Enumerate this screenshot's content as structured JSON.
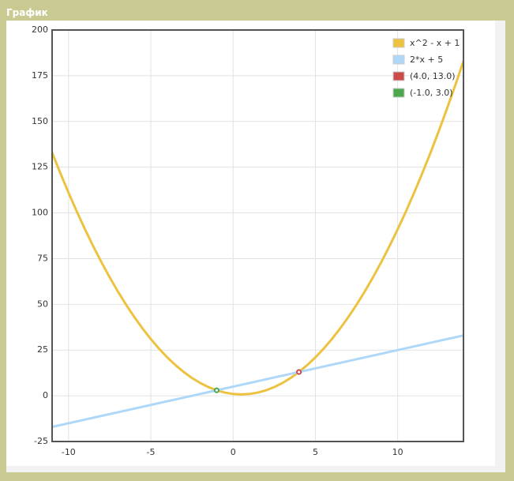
{
  "panel_title": "График",
  "chart_data": {
    "type": "line",
    "xlim": [
      -11,
      14
    ],
    "xticks": [
      -10,
      -5,
      0,
      5,
      10
    ],
    "ylim": [
      -25,
      200
    ],
    "yticks": [
      -25,
      0,
      25,
      50,
      75,
      100,
      125,
      150,
      175,
      200
    ],
    "grid": true,
    "legend": "top-right",
    "series": [
      {
        "name": "x^2 - x + 1",
        "color": "#edc240",
        "kind": "line",
        "x": [
          -11,
          -10.5,
          -10,
          -9.5,
          -9,
          -8.5,
          -8,
          -7.5,
          -7,
          -6.5,
          -6,
          -5.5,
          -5,
          -4.5,
          -4,
          -3.5,
          -3,
          -2.5,
          -2,
          -1.5,
          -1,
          -0.5,
          0,
          0.5,
          1,
          1.5,
          2,
          2.5,
          3,
          3.5,
          4,
          4.5,
          5,
          5.5,
          6,
          6.5,
          7,
          7.5,
          8,
          8.5,
          9,
          9.5,
          10,
          10.5,
          11,
          11.5,
          12,
          12.5,
          13,
          13.5,
          14
        ],
        "values": [
          133,
          121.75,
          111,
          100.75,
          91,
          81.75,
          73,
          64.75,
          57,
          49.75,
          43,
          36.75,
          31,
          25.75,
          21,
          16.75,
          13,
          9.75,
          7,
          4.75,
          3,
          1.75,
          1,
          0.75,
          1,
          1.75,
          3,
          4.75,
          7,
          9.75,
          13,
          16.75,
          21,
          25.75,
          31,
          36.75,
          43,
          49.75,
          57,
          64.75,
          73,
          81.75,
          91,
          100.75,
          111,
          121.75,
          133,
          144.75,
          157,
          169.75,
          183
        ]
      },
      {
        "name": "2*x + 5",
        "color": "#afd8f8",
        "kind": "line",
        "x": [
          -11,
          14
        ],
        "values": [
          -17,
          33
        ]
      },
      {
        "name": "(4.0, 13.0)",
        "color": "#cb4b4b",
        "kind": "point",
        "x": [
          4
        ],
        "values": [
          13
        ]
      },
      {
        "name": "(-1.0, 3.0)",
        "color": "#4da74d",
        "kind": "point",
        "x": [
          -1
        ],
        "values": [
          3
        ]
      }
    ]
  }
}
